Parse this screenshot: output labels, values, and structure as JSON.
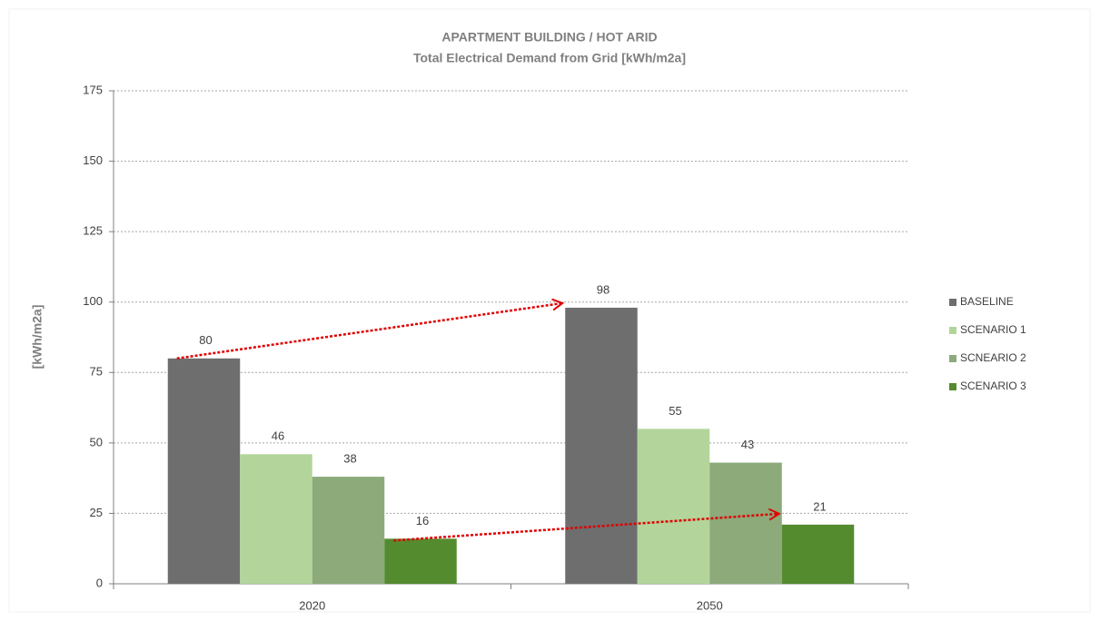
{
  "chart_data": {
    "type": "bar",
    "title": "APARTMENT BUILDING / HOT ARID",
    "subtitle": "Total Electrical Demand from Grid [kWh/m2a]",
    "y_label": "[kWh/m2a]",
    "categories": [
      "2020",
      "2050"
    ],
    "series": [
      {
        "name": "BASELINE",
        "color": "#6e6e6e",
        "values": [
          80,
          98
        ]
      },
      {
        "name": "SCENARIO 1",
        "color": "#b3d59b",
        "values": [
          46,
          55
        ]
      },
      {
        "name": "SCNEARIO 2",
        "color": "#8caa7a",
        "values": [
          38,
          43
        ]
      },
      {
        "name": "SCENARIO 3",
        "color": "#548b2f",
        "values": [
          16,
          21
        ]
      }
    ],
    "ylim": [
      0,
      175
    ],
    "yticks": [
      0,
      25,
      50,
      75,
      100,
      125,
      150,
      175
    ],
    "grid": true,
    "legend": "right"
  }
}
